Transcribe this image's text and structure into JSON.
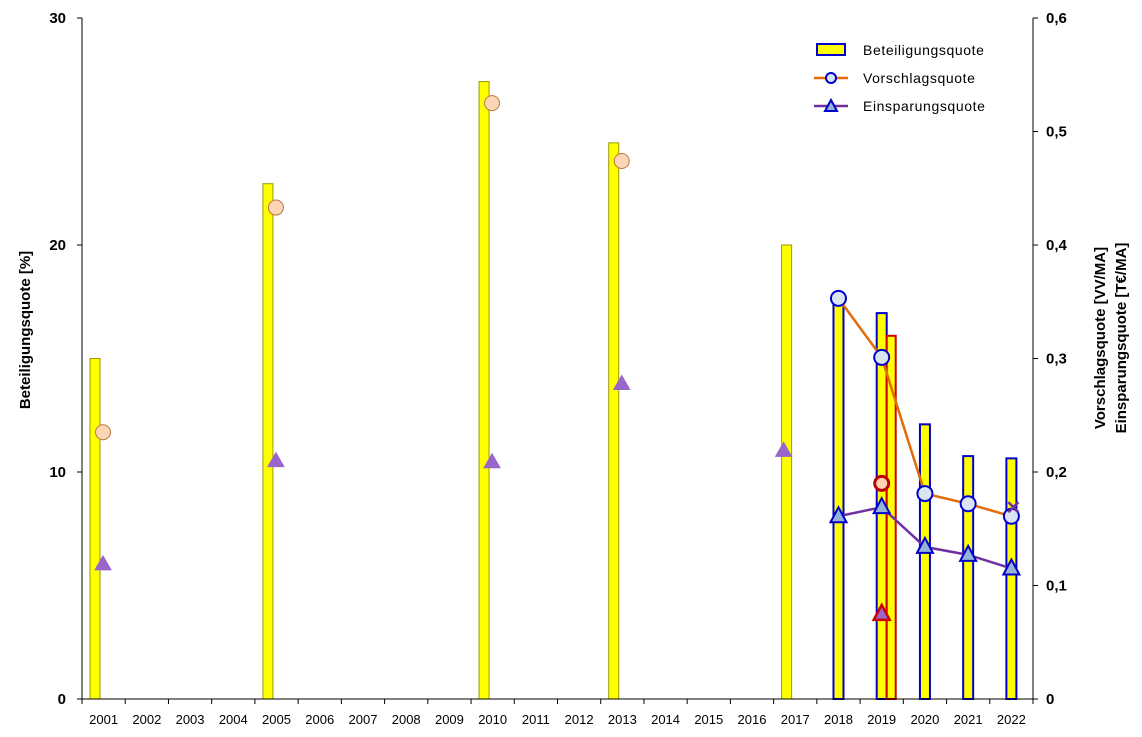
{
  "chart_data": {
    "type": "bar",
    "categories": [
      "2001",
      "2002",
      "2003",
      "2004",
      "2005",
      "2006",
      "2007",
      "2008",
      "2009",
      "2010",
      "2011",
      "2012",
      "2013",
      "2014",
      "2015",
      "2016",
      "2017",
      "2018",
      "2019",
      "2020",
      "2021",
      "2022"
    ],
    "ylabel_left": "Beteiligungsquote [%]",
    "ylabel_right_1": "Vorschlagsquote [VV/MA]",
    "ylabel_right_2": "Einsparungsquote [T€/MA]",
    "ylim_left": [
      0,
      30
    ],
    "ylim_right": [
      0,
      0.6
    ],
    "yticks_left": [
      0,
      10,
      20,
      30
    ],
    "yticks_right": [
      "0",
      "0,1",
      "0,2",
      "0,3",
      "0,4",
      "0,5",
      "0,6"
    ],
    "legend": [
      {
        "name": "Beteiligungsquote",
        "kind": "bar"
      },
      {
        "name": "Vorschlagsquote",
        "kind": "line-circle"
      },
      {
        "name": "Einsparungsquote",
        "kind": "line-triangle"
      }
    ],
    "series": [
      {
        "name": "Beteiligungsquote (historic)",
        "axis": "left",
        "color": "#ffff00",
        "edge": "#999900",
        "values": [
          15,
          null,
          null,
          null,
          22.7,
          null,
          null,
          null,
          null,
          27.2,
          null,
          null,
          24.5,
          null,
          null,
          null,
          20,
          null,
          null,
          null,
          null,
          null
        ]
      },
      {
        "name": "Beteiligungsquote",
        "axis": "left",
        "color": "#ffff00",
        "edge": "#0000cc",
        "values": [
          null,
          null,
          null,
          null,
          null,
          null,
          null,
          null,
          null,
          null,
          null,
          null,
          null,
          null,
          null,
          null,
          null,
          17.8,
          17,
          12.1,
          10.7,
          10.6
        ]
      },
      {
        "name": "Beteiligungsquote (special 2019)",
        "axis": "left",
        "color": "#ffff00",
        "edge": "#cc0000",
        "values": [
          null,
          null,
          null,
          null,
          null,
          null,
          null,
          null,
          null,
          null,
          null,
          null,
          null,
          null,
          null,
          null,
          null,
          null,
          16,
          null,
          null,
          null
        ]
      },
      {
        "name": "Vorschlagsquote (historic)",
        "axis": "right",
        "color": "#fcd5b4",
        "edge": "#bb7744",
        "values": [
          0.235,
          null,
          null,
          null,
          0.433,
          null,
          null,
          null,
          null,
          0.525,
          null,
          null,
          0.474,
          null,
          null,
          null,
          null,
          null,
          null,
          null,
          null,
          null
        ]
      },
      {
        "name": "Vorschlagsquote",
        "axis": "right",
        "color": "#e36c09",
        "marker_fill": "#dbe5f1",
        "edge": "#0000cc",
        "values": [
          null,
          null,
          null,
          null,
          null,
          null,
          null,
          null,
          null,
          null,
          null,
          null,
          null,
          null,
          null,
          null,
          null,
          0.353,
          0.301,
          0.181,
          0.172,
          0.161
        ]
      },
      {
        "name": "Vorschlagsquote (special 2019)",
        "axis": "right",
        "color": "#fcd5b4",
        "edge": "#c00000",
        "values": [
          null,
          null,
          null,
          null,
          null,
          null,
          null,
          null,
          null,
          null,
          null,
          null,
          null,
          null,
          null,
          null,
          null,
          null,
          0.19,
          null,
          null,
          null
        ]
      },
      {
        "name": "Einsparungsquote (historic)",
        "axis": "right",
        "color": "#9966cc",
        "edge": "#9966cc",
        "values": [
          0.119,
          null,
          null,
          null,
          0.21,
          null,
          null,
          null,
          null,
          0.209,
          null,
          null,
          0.278,
          null,
          null,
          null,
          0.219,
          null,
          null,
          null,
          null,
          null
        ]
      },
      {
        "name": "Einsparungsquote",
        "axis": "right",
        "color": "#7030a0",
        "marker_fill": "#95b3d7",
        "edge": "#0000cc",
        "values": [
          null,
          null,
          null,
          null,
          null,
          null,
          null,
          null,
          null,
          null,
          null,
          null,
          null,
          null,
          null,
          null,
          null,
          0.161,
          0.169,
          0.134,
          0.127,
          0.115
        ]
      },
      {
        "name": "Einsparungsquote (special 2019)",
        "axis": "right",
        "color": "#9966cc",
        "edge": "#cc0000",
        "values": [
          null,
          null,
          null,
          null,
          null,
          null,
          null,
          null,
          null,
          null,
          null,
          null,
          null,
          null,
          null,
          null,
          null,
          null,
          0.075,
          null,
          null,
          null
        ]
      }
    ],
    "colors": {
      "bar_fill": "#ffff00",
      "axis": "#000000"
    }
  }
}
